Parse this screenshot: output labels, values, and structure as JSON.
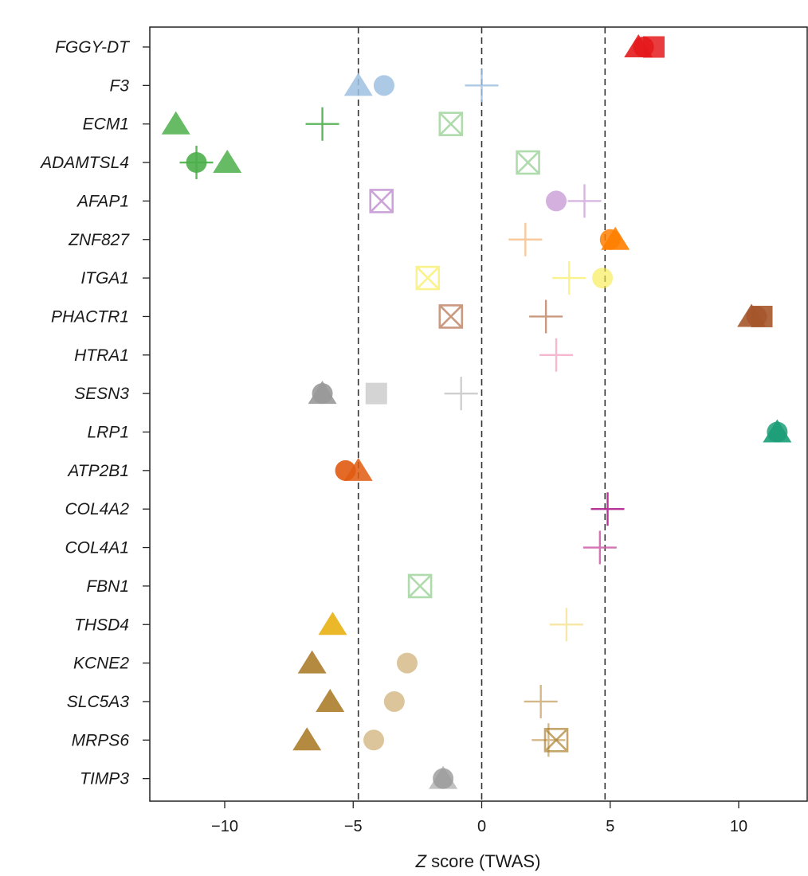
{
  "chart_data": {
    "type": "scatter",
    "title": "",
    "xlabel_italic": "Z",
    "xlabel_rest": " score (TWAS)",
    "xlim": [
      -13,
      12.8
    ],
    "xticks": [
      -10,
      -5,
      0,
      5,
      10
    ],
    "xtick_labels": [
      "−10",
      "−5",
      "0",
      "5",
      "10"
    ],
    "reference_lines": [
      -4.8,
      0,
      4.8
    ],
    "genes": [
      "FGGY-DT",
      "F3",
      "ECM1",
      "ADAMTSL4",
      "AFAP1",
      "ZNF827",
      "ITGA1",
      "PHACTR1",
      "HTRA1",
      "SESN3",
      "LRP1",
      "ATP2B1",
      "COL4A2",
      "COL4A1",
      "FBN1",
      "THSD4",
      "KCNE2",
      "SLC5A3",
      "MRPS6",
      "TIMP3"
    ],
    "points": [
      {
        "gene": "FGGY-DT",
        "z": 6.7,
        "marker": "square",
        "color": "#e41a1c",
        "alpha": 0.85
      },
      {
        "gene": "FGGY-DT",
        "z": 6.1,
        "marker": "triangle",
        "color": "#e41a1c",
        "alpha": 0.9
      },
      {
        "gene": "FGGY-DT",
        "z": 6.3,
        "marker": "circle",
        "color": "#e41a1c",
        "alpha": 0.9
      },
      {
        "gene": "F3",
        "z": -4.8,
        "marker": "triangle",
        "color": "#9ec0e0",
        "alpha": 0.85
      },
      {
        "gene": "F3",
        "z": -3.8,
        "marker": "circle",
        "color": "#9ec0e0",
        "alpha": 0.85
      },
      {
        "gene": "F3",
        "z": 0.0,
        "marker": "plus",
        "color": "#9ec0e0",
        "alpha": 0.85
      },
      {
        "gene": "ECM1",
        "z": -11.9,
        "marker": "triangle",
        "color": "#4daf4a",
        "alpha": 0.85
      },
      {
        "gene": "ECM1",
        "z": -6.2,
        "marker": "plus",
        "color": "#4daf4a",
        "alpha": 0.9
      },
      {
        "gene": "ECM1",
        "z": -1.2,
        "marker": "boxx",
        "color": "#4daf4a",
        "alpha": 0.45
      },
      {
        "gene": "ADAMTSL4",
        "z": -11.1,
        "marker": "circle",
        "color": "#4daf4a",
        "alpha": 0.9
      },
      {
        "gene": "ADAMTSL4",
        "z": -11.1,
        "marker": "plus",
        "color": "#4daf4a",
        "alpha": 0.9
      },
      {
        "gene": "ADAMTSL4",
        "z": -9.9,
        "marker": "triangle",
        "color": "#4daf4a",
        "alpha": 0.85
      },
      {
        "gene": "ADAMTSL4",
        "z": 1.8,
        "marker": "boxx",
        "color": "#4daf4a",
        "alpha": 0.45
      },
      {
        "gene": "AFAP1",
        "z": -3.9,
        "marker": "boxx",
        "color": "#b67cc8",
        "alpha": 0.7
      },
      {
        "gene": "AFAP1",
        "z": 2.9,
        "marker": "circle",
        "color": "#b67cc8",
        "alpha": 0.6
      },
      {
        "gene": "AFAP1",
        "z": 4.0,
        "marker": "plus",
        "color": "#b67cc8",
        "alpha": 0.55
      },
      {
        "gene": "ZNF827",
        "z": 1.7,
        "marker": "plus",
        "color": "#f5a55a",
        "alpha": 0.6
      },
      {
        "gene": "ZNF827",
        "z": 5.2,
        "marker": "triangle",
        "color": "#ff7f00",
        "alpha": 0.9
      },
      {
        "gene": "ZNF827",
        "z": 5.0,
        "marker": "circle",
        "color": "#ff7f00",
        "alpha": 0.85
      },
      {
        "gene": "ITGA1",
        "z": -2.1,
        "marker": "boxx",
        "color": "#f7ec50",
        "alpha": 0.65
      },
      {
        "gene": "ITGA1",
        "z": 3.4,
        "marker": "plus",
        "color": "#f7ec50",
        "alpha": 0.65
      },
      {
        "gene": "ITGA1",
        "z": 4.7,
        "marker": "circle",
        "color": "#f7ec50",
        "alpha": 0.65
      },
      {
        "gene": "PHACTR1",
        "z": -1.2,
        "marker": "boxx",
        "color": "#a6562b",
        "alpha": 0.6
      },
      {
        "gene": "PHACTR1",
        "z": 2.5,
        "marker": "plus",
        "color": "#a6562b",
        "alpha": 0.6
      },
      {
        "gene": "PHACTR1",
        "z": 10.9,
        "marker": "square",
        "color": "#a6562b",
        "alpha": 0.9
      },
      {
        "gene": "PHACTR1",
        "z": 10.5,
        "marker": "triangle",
        "color": "#a6562b",
        "alpha": 0.9
      },
      {
        "gene": "PHACTR1",
        "z": 10.7,
        "marker": "circle",
        "color": "#a6562b",
        "alpha": 0.85
      },
      {
        "gene": "HTRA1",
        "z": 2.9,
        "marker": "plus",
        "color": "#f4a6c4",
        "alpha": 0.8
      },
      {
        "gene": "SESN3",
        "z": -6.2,
        "marker": "triangle",
        "color": "#999999",
        "alpha": 0.9
      },
      {
        "gene": "SESN3",
        "z": -6.2,
        "marker": "circle",
        "color": "#999999",
        "alpha": 0.9
      },
      {
        "gene": "SESN3",
        "z": -4.1,
        "marker": "square",
        "color": "#cccccc",
        "alpha": 0.85
      },
      {
        "gene": "SESN3",
        "z": -0.8,
        "marker": "plus",
        "color": "#bbbbbb",
        "alpha": 0.7
      },
      {
        "gene": "LRP1",
        "z": 11.5,
        "marker": "triangle",
        "color": "#1b9e77",
        "alpha": 0.9
      },
      {
        "gene": "LRP1",
        "z": 11.5,
        "marker": "circle",
        "color": "#1b9e77",
        "alpha": 0.85
      },
      {
        "gene": "ATP2B1",
        "z": -5.3,
        "marker": "circle",
        "color": "#e05a10",
        "alpha": 0.9
      },
      {
        "gene": "ATP2B1",
        "z": -4.8,
        "marker": "triangle",
        "color": "#e05a10",
        "alpha": 0.85
      },
      {
        "gene": "COL4A2",
        "z": 4.9,
        "marker": "plus",
        "color": "#b0208c",
        "alpha": 0.9
      },
      {
        "gene": "COL4A1",
        "z": 4.6,
        "marker": "plus",
        "color": "#cc5aa8",
        "alpha": 0.85
      },
      {
        "gene": "FBN1",
        "z": -2.4,
        "marker": "boxx",
        "color": "#4daf4a",
        "alpha": 0.45
      },
      {
        "gene": "THSD4",
        "z": -5.8,
        "marker": "triangle",
        "color": "#e6ab02",
        "alpha": 0.85
      },
      {
        "gene": "THSD4",
        "z": 3.3,
        "marker": "plus",
        "color": "#f5e08a",
        "alpha": 0.75
      },
      {
        "gene": "KCNE2",
        "z": -6.6,
        "marker": "triangle",
        "color": "#a6761d",
        "alpha": 0.85
      },
      {
        "gene": "KCNE2",
        "z": -2.9,
        "marker": "circle",
        "color": "#d8bf90",
        "alpha": 0.9
      },
      {
        "gene": "SLC5A3",
        "z": -5.9,
        "marker": "triangle",
        "color": "#a6761d",
        "alpha": 0.85
      },
      {
        "gene": "SLC5A3",
        "z": -3.4,
        "marker": "circle",
        "color": "#d8bf90",
        "alpha": 0.9
      },
      {
        "gene": "SLC5A3",
        "z": 2.3,
        "marker": "plus",
        "color": "#c9a66b",
        "alpha": 0.8
      },
      {
        "gene": "MRPS6",
        "z": -6.8,
        "marker": "triangle",
        "color": "#a6761d",
        "alpha": 0.85
      },
      {
        "gene": "MRPS6",
        "z": -4.2,
        "marker": "circle",
        "color": "#d8bf90",
        "alpha": 0.9
      },
      {
        "gene": "MRPS6",
        "z": 2.6,
        "marker": "plus",
        "color": "#c9a66b",
        "alpha": 0.8
      },
      {
        "gene": "MRPS6",
        "z": 2.9,
        "marker": "boxx",
        "color": "#a6761d",
        "alpha": 0.65
      },
      {
        "gene": "TIMP3",
        "z": -1.5,
        "marker": "triangle",
        "color": "#bbbbbb",
        "alpha": 0.9
      },
      {
        "gene": "TIMP3",
        "z": -1.5,
        "marker": "circle",
        "color": "#999999",
        "alpha": 0.8
      }
    ]
  }
}
